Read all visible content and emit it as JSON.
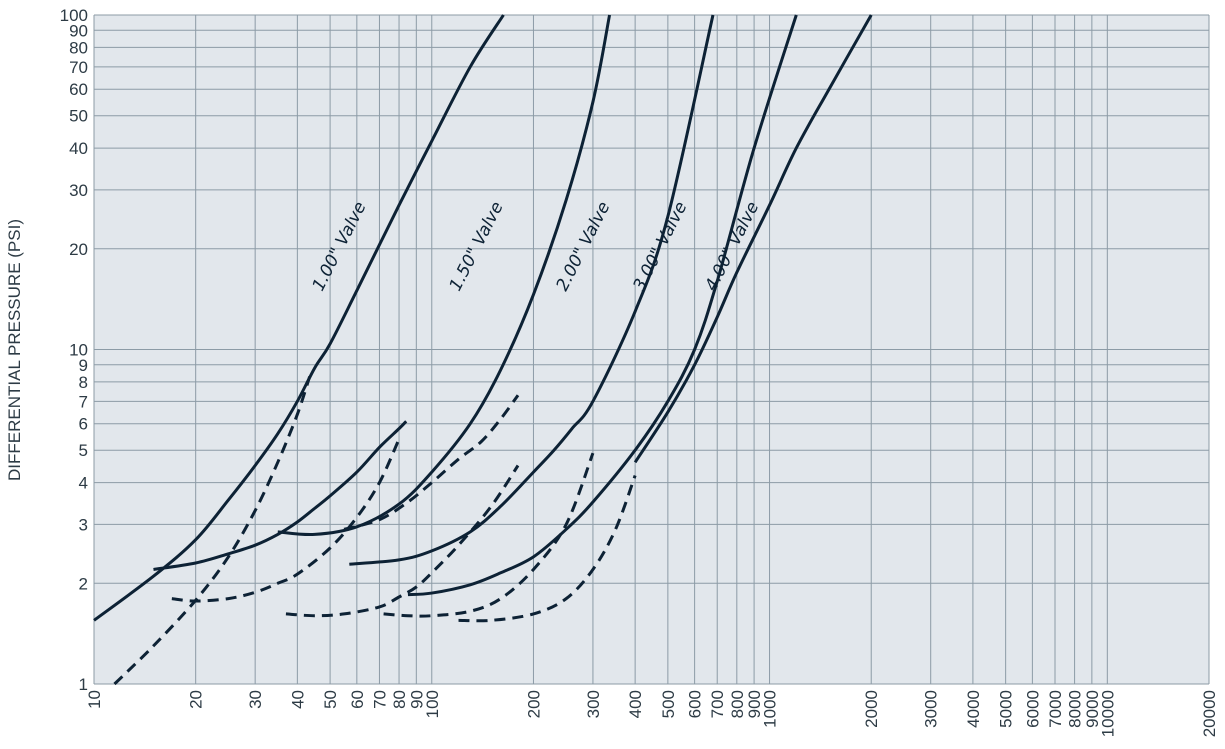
{
  "chart_data": {
    "type": "line",
    "title": "",
    "xlabel": "",
    "ylabel": "DIFFERENTIAL PRESSURE (PSI)",
    "x_scale": "log",
    "y_scale": "log",
    "xlim": [
      10,
      20000
    ],
    "ylim": [
      1,
      100
    ],
    "grid": true,
    "legend": "none",
    "x_ticks": [
      10,
      20,
      30,
      40,
      50,
      60,
      70,
      80,
      90,
      100,
      200,
      300,
      400,
      500,
      600,
      700,
      800,
      900,
      1000,
      2000,
      3000,
      4000,
      5000,
      6000,
      7000,
      8000,
      9000,
      10000,
      20000
    ],
    "x_tick_labels": [
      "10",
      "20",
      "30",
      "40",
      "50",
      "60",
      "70",
      "80",
      "90",
      "100",
      "200",
      "300",
      "400",
      "500",
      "600",
      "700",
      "800",
      "900",
      "1000",
      "2000",
      "3000",
      "4000",
      "5000",
      "6000",
      "7000",
      "8000",
      "9000",
      "10000",
      "20000"
    ],
    "y_ticks": [
      1,
      2,
      3,
      4,
      5,
      6,
      7,
      8,
      9,
      10,
      20,
      30,
      40,
      50,
      60,
      70,
      80,
      90,
      100
    ],
    "y_tick_labels": [
      "1",
      "2",
      "3",
      "4",
      "5",
      "6",
      "7",
      "8",
      "9",
      "10",
      "20",
      "30",
      "40",
      "50",
      "60",
      "70",
      "80",
      "90",
      "100"
    ],
    "colors": {
      "plot_bg": "#e2e7ec",
      "grid": "#8c9ba6",
      "line": "#0d2235",
      "text": "#2d3b45"
    },
    "series": [
      {
        "name": "1.00\" Valve",
        "style": "solid",
        "x": [
          10,
          15,
          20,
          25,
          30,
          35,
          40,
          45,
          50,
          60,
          80,
          100,
          130,
          163
        ],
        "y": [
          1.55,
          2.1,
          2.7,
          3.55,
          4.5,
          5.6,
          7.0,
          8.8,
          10.4,
          15,
          27,
          42,
          70,
          100
        ]
      },
      {
        "name": "1.00\" Valve",
        "style": "dashed",
        "x": [
          11.5,
          15,
          20,
          25,
          30,
          35,
          40,
          43.5
        ],
        "y": [
          1.0,
          1.3,
          1.78,
          2.4,
          3.3,
          4.6,
          6.4,
          8.3
        ]
      },
      {
        "name": "1.00\" Valve",
        "style": "solid",
        "x": [
          15,
          20,
          25,
          30,
          35,
          40,
          45,
          50,
          60,
          70,
          80,
          84
        ],
        "y": [
          2.2,
          2.3,
          2.45,
          2.6,
          2.8,
          3.05,
          3.35,
          3.65,
          4.3,
          5.1,
          5.8,
          6.1
        ]
      },
      {
        "name": "1.00\" Valve",
        "style": "dashed",
        "x": [
          17,
          20,
          25,
          30,
          35,
          40,
          50,
          60,
          70,
          80
        ],
        "y": [
          1.8,
          1.77,
          1.8,
          1.88,
          2.0,
          2.13,
          2.55,
          3.15,
          4.0,
          5.4
        ]
      },
      {
        "name": "1.50\" Valve",
        "style": "solid",
        "x": [
          35,
          45,
          60,
          80,
          100,
          130,
          160,
          200,
          250,
          300,
          336
        ],
        "y": [
          2.85,
          2.8,
          2.95,
          3.45,
          4.3,
          6.0,
          8.7,
          14.6,
          28,
          55,
          100
        ]
      },
      {
        "name": "1.50\" Valve",
        "style": "dashed",
        "x": [
          55,
          70,
          85,
          100,
          120,
          140,
          160,
          180
        ],
        "y": [
          2.9,
          3.1,
          3.5,
          4.0,
          4.7,
          5.3,
          6.2,
          7.3
        ]
      },
      {
        "name": "1.50\" Valve",
        "style": "dashed",
        "x": [
          37,
          45,
          55,
          70,
          80,
          90,
          100,
          120,
          150,
          180
        ],
        "y": [
          1.62,
          1.6,
          1.62,
          1.7,
          1.82,
          1.95,
          2.15,
          2.6,
          3.4,
          4.5
        ]
      },
      {
        "name": "2.00\" Valve",
        "style": "solid",
        "x": [
          57,
          80,
          100,
          130,
          160,
          200,
          230,
          260,
          300,
          400,
          500,
          680
        ],
        "y": [
          2.28,
          2.35,
          2.5,
          2.85,
          3.4,
          4.3,
          5.0,
          5.8,
          7.0,
          13.0,
          25,
          100
        ]
      },
      {
        "name": "2.00\" Valve",
        "style": "dashed",
        "x": [
          72,
          85,
          100,
          130,
          160,
          200,
          250,
          300
        ],
        "y": [
          1.62,
          1.6,
          1.6,
          1.65,
          1.8,
          2.2,
          3.0,
          4.9
        ]
      },
      {
        "name": "3.00\" Valve",
        "style": "solid",
        "x": [
          85,
          100,
          130,
          160,
          200,
          250,
          300,
          400,
          500,
          600,
          700,
          900,
          1200
        ],
        "y": [
          1.85,
          1.87,
          1.98,
          2.15,
          2.4,
          2.9,
          3.5,
          5.0,
          7.0,
          10,
          16,
          40,
          100
        ]
      },
      {
        "name": "3.00\" Valve",
        "style": "dashed",
        "x": [
          120,
          150,
          200,
          250,
          300,
          350,
          400
        ],
        "y": [
          1.55,
          1.55,
          1.62,
          1.8,
          2.2,
          2.9,
          4.2
        ]
      },
      {
        "name": "4.00\" Valve",
        "style": "solid",
        "x": [
          400,
          500,
          600,
          700,
          800,
          1000,
          1200,
          1500,
          2000
        ],
        "y": [
          4.6,
          6.5,
          9.0,
          12.5,
          17,
          27,
          40,
          60,
          100
        ]
      }
    ],
    "series_labels": [
      {
        "text": "1.00\" Valve",
        "x": 55,
        "y": 20
      },
      {
        "text": "1.50\" Valve",
        "x": 140,
        "y": 20
      },
      {
        "text": "2.00\" Valve",
        "x": 290,
        "y": 20
      },
      {
        "text": "3.00\" Valve",
        "x": 490,
        "y": 20
      },
      {
        "text": "4.00\" Valve",
        "x": 800,
        "y": 20
      }
    ]
  }
}
